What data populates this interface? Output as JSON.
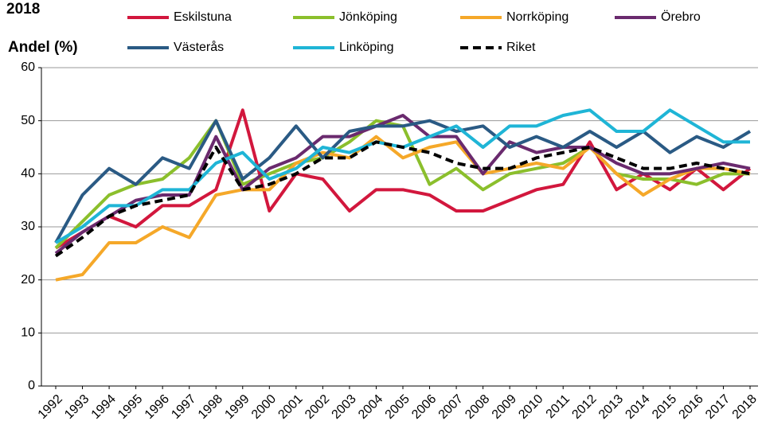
{
  "chart_data": {
    "type": "line",
    "title": "2018",
    "y_label": "Andel (%)",
    "categories": [
      "1992",
      "1993",
      "1994",
      "1995",
      "1996",
      "1997",
      "1998",
      "1999",
      "2000",
      "2001",
      "2002",
      "2003",
      "2004",
      "2005",
      "2006",
      "2007",
      "2008",
      "2009",
      "2010",
      "2011",
      "2012",
      "2013",
      "2014",
      "2015",
      "2016",
      "2017",
      "2018"
    ],
    "ylim": [
      0,
      60
    ],
    "yticks": [
      0,
      10,
      20,
      30,
      40,
      50,
      60
    ],
    "grid": true,
    "series": [
      {
        "name": "Eskilstuna",
        "color": "#d2173d",
        "values": [
          26,
          29,
          32,
          30,
          34,
          34,
          37,
          52,
          33,
          40,
          39,
          33,
          37,
          37,
          36,
          33,
          33,
          35,
          37,
          38,
          46,
          37,
          40,
          37,
          41,
          37,
          41
        ]
      },
      {
        "name": "Jönköping",
        "color": "#8bbf2c",
        "values": [
          26,
          31,
          36,
          38,
          39,
          43,
          50,
          38,
          40,
          42,
          43,
          46,
          50,
          49,
          38,
          41,
          37,
          40,
          41,
          42,
          45,
          40,
          39,
          39,
          38,
          40,
          40
        ]
      },
      {
        "name": "Norrköping",
        "color": "#f5a829",
        "values": [
          20,
          21,
          27,
          27,
          30,
          28,
          36,
          37,
          37,
          42,
          44,
          43,
          47,
          43,
          45,
          46,
          40,
          41,
          42,
          41,
          45,
          40,
          36,
          39,
          41,
          41,
          40
        ]
      },
      {
        "name": "Örebro",
        "color": "#6a2a6e",
        "values": [
          25,
          29,
          32,
          35,
          36,
          36,
          47,
          37,
          41,
          43,
          47,
          47,
          49,
          51,
          47,
          47,
          40,
          46,
          44,
          45,
          45,
          42,
          40,
          40,
          41,
          42,
          41
        ]
      },
      {
        "name": "Västerås",
        "color": "#2a5a84",
        "values": [
          27,
          36,
          41,
          38,
          43,
          41,
          50,
          39,
          43,
          49,
          43,
          48,
          49,
          49,
          50,
          48,
          49,
          45,
          47,
          45,
          48,
          45,
          48,
          44,
          47,
          45,
          48
        ]
      },
      {
        "name": "Linköping",
        "color": "#1fb5d6",
        "values": [
          27,
          30,
          34,
          34,
          37,
          37,
          42,
          44,
          39,
          41,
          45,
          44,
          46,
          45,
          47,
          49,
          45,
          49,
          49,
          51,
          52,
          48,
          48,
          52,
          49,
          46,
          46
        ]
      },
      {
        "name": "Riket",
        "color": "#000000",
        "dashed": true,
        "values": [
          24.5,
          28,
          32,
          34,
          35,
          36,
          45,
          37,
          38,
          40,
          43,
          43,
          46,
          45,
          44,
          42,
          41,
          41,
          43,
          44,
          45,
          43,
          41,
          41,
          42,
          41,
          40
        ]
      }
    ]
  }
}
